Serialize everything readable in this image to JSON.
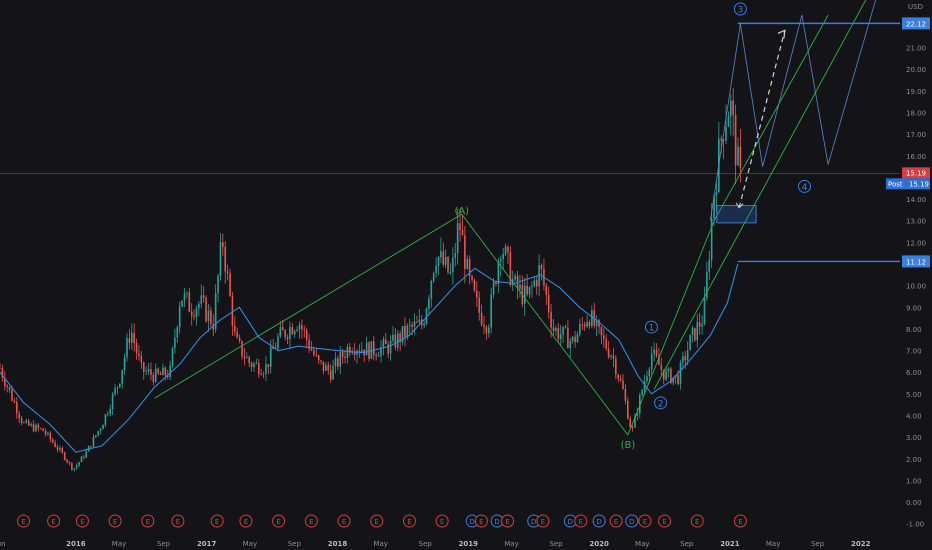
{
  "chart_data": {
    "type": "candlestick",
    "currency": "USD",
    "x_range": [
      2015.42,
      2022.3
    ],
    "ylim": [
      -1.2,
      23.2
    ],
    "y_ticks": [
      "-1.00",
      "0.00",
      "1.00",
      "2.00",
      "3.00",
      "4.00",
      "5.00",
      "6.00",
      "7.00",
      "8.00",
      "9.00",
      "10.00",
      "11.00",
      "12.00",
      "13.00",
      "14.00",
      "15.00",
      "16.00",
      "17.00",
      "18.00",
      "19.00",
      "20.00",
      "21.00",
      "22.00"
    ],
    "x_ticks": [
      {
        "x": 2015.42,
        "label": "Jun",
        "bold": false
      },
      {
        "x": 2016.0,
        "label": "2016",
        "bold": true
      },
      {
        "x": 2016.33,
        "label": "May",
        "bold": false
      },
      {
        "x": 2016.67,
        "label": "Sep",
        "bold": false
      },
      {
        "x": 2017.0,
        "label": "2017",
        "bold": true
      },
      {
        "x": 2017.33,
        "label": "May",
        "bold": false
      },
      {
        "x": 2017.67,
        "label": "Sep",
        "bold": false
      },
      {
        "x": 2018.0,
        "label": "2018",
        "bold": true
      },
      {
        "x": 2018.33,
        "label": "May",
        "bold": false
      },
      {
        "x": 2018.67,
        "label": "Sep",
        "bold": false
      },
      {
        "x": 2019.0,
        "label": "2019",
        "bold": true
      },
      {
        "x": 2019.33,
        "label": "May",
        "bold": false
      },
      {
        "x": 2019.67,
        "label": "Sep",
        "bold": false
      },
      {
        "x": 2020.0,
        "label": "2020",
        "bold": true
      },
      {
        "x": 2020.33,
        "label": "May",
        "bold": false
      },
      {
        "x": 2020.67,
        "label": "Sep",
        "bold": false
      },
      {
        "x": 2021.0,
        "label": "2021",
        "bold": true
      },
      {
        "x": 2021.33,
        "label": "May",
        "bold": false
      },
      {
        "x": 2021.67,
        "label": "Sep",
        "bold": false
      },
      {
        "x": 2022.0,
        "label": "2022",
        "bold": true
      }
    ],
    "price_path": [
      [
        2015.42,
        6.2
      ],
      [
        2015.5,
        5.0
      ],
      [
        2015.6,
        3.6
      ],
      [
        2015.75,
        3.3
      ],
      [
        2015.9,
        2.2
      ],
      [
        2015.98,
        1.5
      ],
      [
        2016.08,
        2.3
      ],
      [
        2016.2,
        3.6
      ],
      [
        2016.33,
        5.6
      ],
      [
        2016.42,
        8.0
      ],
      [
        2016.5,
        6.1
      ],
      [
        2016.62,
        5.8
      ],
      [
        2016.72,
        6.0
      ],
      [
        2016.8,
        9.6
      ],
      [
        2016.88,
        9.0
      ],
      [
        2016.95,
        9.2
      ],
      [
        2017.05,
        8.3
      ],
      [
        2017.12,
        12.2
      ],
      [
        2017.22,
        7.4
      ],
      [
        2017.33,
        6.4
      ],
      [
        2017.45,
        6.2
      ],
      [
        2017.55,
        7.6
      ],
      [
        2017.7,
        8.4
      ],
      [
        2017.85,
        6.4
      ],
      [
        2017.95,
        6.0
      ],
      [
        2018.1,
        7.3
      ],
      [
        2018.25,
        7.0
      ],
      [
        2018.4,
        7.2
      ],
      [
        2018.55,
        8.0
      ],
      [
        2018.65,
        8.2
      ],
      [
        2018.75,
        11.5
      ],
      [
        2018.87,
        10.4
      ],
      [
        2018.93,
        13.0
      ],
      [
        2019.0,
        10.3
      ],
      [
        2019.08,
        8.8
      ],
      [
        2019.15,
        8.2
      ],
      [
        2019.25,
        12.0
      ],
      [
        2019.35,
        10.0
      ],
      [
        2019.45,
        9.4
      ],
      [
        2019.55,
        10.8
      ],
      [
        2019.65,
        8.0
      ],
      [
        2019.8,
        7.4
      ],
      [
        2019.92,
        8.7
      ],
      [
        2020.0,
        7.7
      ],
      [
        2020.1,
        6.8
      ],
      [
        2020.18,
        5.2
      ],
      [
        2020.25,
        3.2
      ],
      [
        2020.3,
        4.5
      ],
      [
        2020.4,
        6.9
      ],
      [
        2020.5,
        5.9
      ],
      [
        2020.6,
        5.7
      ],
      [
        2020.7,
        7.5
      ],
      [
        2020.8,
        8.6
      ],
      [
        2020.88,
        14.5
      ],
      [
        2020.95,
        17.5
      ],
      [
        2021.0,
        18.5
      ],
      [
        2021.05,
        16.0
      ],
      [
        2021.08,
        14.8
      ]
    ],
    "ma_path": [
      [
        2015.42,
        6.0
      ],
      [
        2015.6,
        4.6
      ],
      [
        2015.8,
        3.6
      ],
      [
        2016.0,
        2.3
      ],
      [
        2016.2,
        2.6
      ],
      [
        2016.4,
        3.8
      ],
      [
        2016.6,
        5.3
      ],
      [
        2016.8,
        6.4
      ],
      [
        2016.95,
        7.6
      ],
      [
        2017.1,
        8.4
      ],
      [
        2017.25,
        9.0
      ],
      [
        2017.4,
        7.6
      ],
      [
        2017.55,
        7.0
      ],
      [
        2017.7,
        7.2
      ],
      [
        2017.85,
        7.1
      ],
      [
        2018.0,
        7.0
      ],
      [
        2018.2,
        6.9
      ],
      [
        2018.4,
        7.2
      ],
      [
        2018.55,
        7.7
      ],
      [
        2018.75,
        9.0
      ],
      [
        2018.9,
        10.0
      ],
      [
        2019.05,
        10.8
      ],
      [
        2019.2,
        10.2
      ],
      [
        2019.35,
        10.1
      ],
      [
        2019.55,
        10.5
      ],
      [
        2019.7,
        9.9
      ],
      [
        2019.85,
        9.0
      ],
      [
        2020.0,
        8.3
      ],
      [
        2020.15,
        7.5
      ],
      [
        2020.3,
        5.8
      ],
      [
        2020.4,
        5.0
      ],
      [
        2020.55,
        5.6
      ],
      [
        2020.7,
        6.6
      ],
      [
        2020.85,
        7.7
      ],
      [
        2020.98,
        9.2
      ],
      [
        2021.06,
        11.0
      ]
    ],
    "wave_lines": [
      [
        [
          2016.6,
          4.8
        ],
        [
          2018.95,
          13.3
        ],
        [
          2020.22,
          3.1
        ]
      ],
      [
        [
          2020.22,
          3.1
        ],
        [
          2020.88,
          13.0
        ],
        [
          2021.75,
          22.5
        ]
      ],
      [
        [
          2020.42,
          5.2
        ],
        [
          2022.2,
          25.0
        ]
      ]
    ],
    "channel_lines": [
      [
        [
          2020.85,
          13.0
        ],
        [
          2021.08,
          22.1
        ],
        [
          2021.25,
          15.5
        ],
        [
          2021.55,
          22.5
        ],
        [
          2021.75,
          15.6
        ],
        [
          2022.2,
          25.0
        ]
      ]
    ],
    "projection_arrow": [
      [
        2021.07,
        13.6
      ],
      [
        2021.42,
        21.8
      ]
    ],
    "zone_box": {
      "x0": 2020.9,
      "x1": 2021.2,
      "y0": 12.9,
      "y1": 13.7
    },
    "h_levels": [
      {
        "y": 22.12,
        "x0": 2021.06,
        "x1": 2022.3,
        "label": "22.12",
        "color": "#3b7ee0"
      },
      {
        "y": 11.12,
        "x0": 2021.06,
        "x1": 2022.3,
        "label": "11.12",
        "color": "#3b7ee0"
      }
    ],
    "last_price": {
      "y": 15.19,
      "label": "15.19",
      "post_label": "Post",
      "post_value": "15.19",
      "up_color": "#d33f44",
      "post_color": "#2d6fd6"
    },
    "wave_labels": [
      {
        "text": "(A)",
        "x": 2018.95,
        "y": 13.3,
        "color": "#2bb34a",
        "circled": false
      },
      {
        "text": "(B)",
        "x": 2020.22,
        "y": 2.5,
        "color": "#2bb34a",
        "circled": false
      },
      {
        "text": "1",
        "x": 2020.4,
        "y": 7.9,
        "color": "#3b7ee0",
        "circled": true
      },
      {
        "text": "2",
        "x": 2020.47,
        "y": 4.4,
        "color": "#3b7ee0",
        "circled": true
      },
      {
        "text": "3",
        "x": 2021.08,
        "y": 22.6,
        "color": "#3b7ee0",
        "circled": true
      },
      {
        "text": "4",
        "x": 2021.57,
        "y": 14.4,
        "color": "#3b7ee0",
        "circled": true
      }
    ],
    "events": [
      {
        "x": 2015.6,
        "t": "E"
      },
      {
        "x": 2015.83,
        "t": "E"
      },
      {
        "x": 2016.05,
        "t": "E"
      },
      {
        "x": 2016.3,
        "t": "E"
      },
      {
        "x": 2016.55,
        "t": "E"
      },
      {
        "x": 2016.78,
        "t": "E"
      },
      {
        "x": 2017.08,
        "t": "E"
      },
      {
        "x": 2017.3,
        "t": "E"
      },
      {
        "x": 2017.55,
        "t": "E"
      },
      {
        "x": 2017.8,
        "t": "E"
      },
      {
        "x": 2018.05,
        "t": "E"
      },
      {
        "x": 2018.3,
        "t": "E"
      },
      {
        "x": 2018.55,
        "t": "E"
      },
      {
        "x": 2018.8,
        "t": "E"
      },
      {
        "x": 2019.03,
        "t": "D"
      },
      {
        "x": 2019.1,
        "t": "E"
      },
      {
        "x": 2019.22,
        "t": "D"
      },
      {
        "x": 2019.3,
        "t": "E"
      },
      {
        "x": 2019.5,
        "t": "D"
      },
      {
        "x": 2019.57,
        "t": "E"
      },
      {
        "x": 2019.78,
        "t": "D"
      },
      {
        "x": 2019.86,
        "t": "E"
      },
      {
        "x": 2020.0,
        "t": "D"
      },
      {
        "x": 2020.13,
        "t": "E"
      },
      {
        "x": 2020.25,
        "t": "D"
      },
      {
        "x": 2020.35,
        "t": "E"
      },
      {
        "x": 2020.5,
        "t": "E"
      },
      {
        "x": 2020.75,
        "t": "E"
      },
      {
        "x": 2021.08,
        "t": "E"
      }
    ]
  }
}
